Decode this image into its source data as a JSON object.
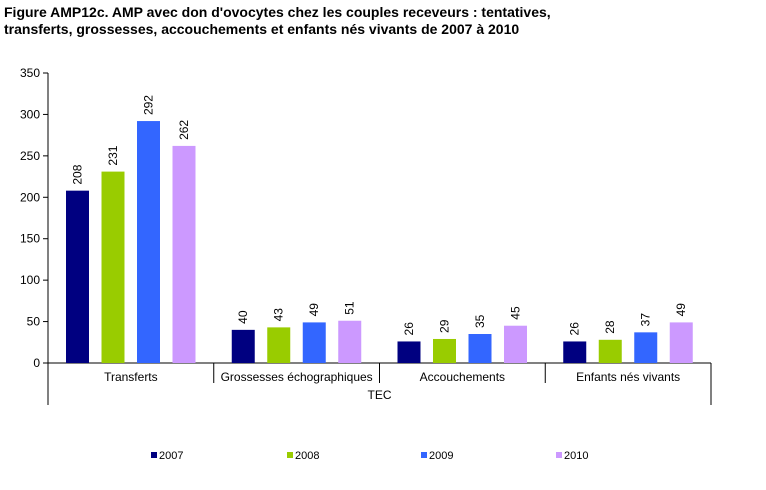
{
  "title_lines": [
    "Figure AMP12c. AMP avec don d'ovocytes chez les couples receveurs : tentatives,",
    "transferts, grossesses, accouchements et enfants nés vivants de  2007 à 2010"
  ],
  "chart_data": {
    "type": "bar",
    "title": "Figure AMP12c. AMP avec don d'ovocytes chez les couples receveurs : tentatives, transferts, grossesses, accouchements et enfants nés vivants de  2007 à 2010",
    "categories": [
      "Transferts",
      "Grossesses échographiques",
      "Accouchements",
      "Enfants nés vivants"
    ],
    "group_label": "TEC",
    "series": [
      {
        "name": "2007",
        "color": "#000080",
        "values": [
          208,
          40,
          26,
          26
        ]
      },
      {
        "name": "2008",
        "color": "#99CC00",
        "values": [
          231,
          43,
          29,
          28
        ]
      },
      {
        "name": "2009",
        "color": "#3366FF",
        "values": [
          292,
          49,
          35,
          37
        ]
      },
      {
        "name": "2010",
        "color": "#CC99FF",
        "values": [
          262,
          51,
          45,
          49
        ]
      }
    ],
    "ylim": [
      0,
      350
    ],
    "yticks": [
      0,
      50,
      100,
      150,
      200,
      250,
      300,
      350
    ],
    "grid": false,
    "data_labels": true,
    "legend_position": "bottom"
  }
}
